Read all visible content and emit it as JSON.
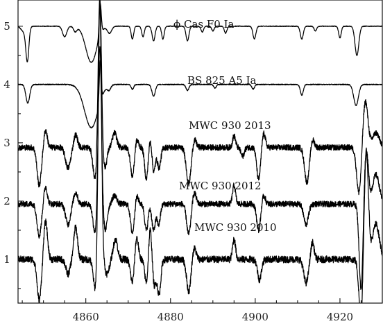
{
  "chart_data": {
    "type": "line",
    "title": "",
    "xlabel": "",
    "ylabel": "",
    "xlim": [
      4844,
      4930
    ],
    "ylim": [
      0.25,
      5.45
    ],
    "x_ticks": [
      4860,
      4880,
      4900,
      4920
    ],
    "y_ticks": [
      1,
      2,
      3,
      4,
      5
    ],
    "grid": false,
    "series": [
      {
        "name": "ϕ Cas F0 Ia",
        "continuum": 5.0,
        "noise": 0.006,
        "features": [
          [
            4845.5,
            -0.1,
            0.7
          ],
          [
            4846.2,
            -0.55,
            0.35
          ],
          [
            4855.0,
            -0.18,
            0.5
          ],
          [
            4857.5,
            -0.09,
            0.4
          ],
          [
            4861.3,
            -0.62,
            1.3
          ],
          [
            4863.4,
            0.55,
            0.25
          ],
          [
            4865.6,
            -0.12,
            0.5
          ],
          [
            4871.0,
            -0.22,
            0.3
          ],
          [
            4873.5,
            -0.18,
            0.3
          ],
          [
            4876.0,
            -0.25,
            0.35
          ],
          [
            4878.2,
            -0.22,
            0.3
          ],
          [
            4884.0,
            -0.25,
            0.35
          ],
          [
            4887.5,
            -0.1,
            0.3
          ],
          [
            4890.0,
            -0.08,
            0.3
          ],
          [
            4893.0,
            -0.12,
            0.3
          ],
          [
            4899.8,
            -0.22,
            0.35
          ],
          [
            4911.0,
            -0.22,
            0.35
          ],
          [
            4914.2,
            -0.08,
            0.3
          ],
          [
            4920.0,
            -0.2,
            0.3
          ],
          [
            4924.0,
            -0.5,
            0.45
          ]
        ]
      },
      {
        "name": "BS 825 A5 Ia",
        "continuum": 4.0,
        "noise": 0.008,
        "features": [
          [
            4846.3,
            -0.32,
            0.45
          ],
          [
            4861.3,
            -0.74,
            1.6
          ],
          [
            4863.4,
            0.72,
            0.22
          ],
          [
            4865.5,
            -0.08,
            0.4
          ],
          [
            4871.0,
            -0.08,
            0.3
          ],
          [
            4876.0,
            -0.2,
            0.4
          ],
          [
            4884.0,
            -0.1,
            0.35
          ],
          [
            4890.5,
            -0.06,
            0.3
          ],
          [
            4899.5,
            -0.08,
            0.3
          ],
          [
            4911.0,
            -0.18,
            0.35
          ],
          [
            4923.8,
            -0.36,
            0.55
          ]
        ]
      },
      {
        "name": "MWC 930 2013",
        "continuum": 2.92,
        "noise": 0.05,
        "features": [
          [
            4849.0,
            -0.65,
            0.5
          ],
          [
            4850.5,
            0.3,
            0.4
          ],
          [
            4855.8,
            -0.35,
            0.6
          ],
          [
            4857.6,
            0.22,
            0.45
          ],
          [
            4862.2,
            -0.55,
            0.5
          ],
          [
            4863.3,
            2.65,
            0.38
          ],
          [
            4864.5,
            -0.35,
            0.45
          ],
          [
            4866.8,
            0.25,
            0.5
          ],
          [
            4871.0,
            -0.5,
            0.45
          ],
          [
            4872.0,
            0.15,
            0.4
          ],
          [
            4874.3,
            -0.55,
            0.4
          ],
          [
            4875.3,
            0.2,
            0.4
          ],
          [
            4876.0,
            -0.45,
            0.4
          ],
          [
            4877.3,
            -0.35,
            0.4
          ],
          [
            4884.3,
            -0.62,
            0.55
          ],
          [
            4885.6,
            0.15,
            0.45
          ],
          [
            4895.0,
            0.2,
            0.35
          ],
          [
            4897.0,
            -0.15,
            0.4
          ],
          [
            4900.8,
            -0.55,
            0.45
          ],
          [
            4902.0,
            0.25,
            0.4
          ],
          [
            4912.2,
            -0.6,
            0.55
          ],
          [
            4913.5,
            0.15,
            0.45
          ],
          [
            4924.5,
            -0.8,
            0.55
          ],
          [
            4926.0,
            0.8,
            0.6
          ],
          [
            4928.5,
            0.25,
            0.8
          ]
        ]
      },
      {
        "name": "MWC 930 2012",
        "continuum": 1.95,
        "noise": 0.05,
        "features": [
          [
            4849.0,
            -0.55,
            0.5
          ],
          [
            4850.5,
            0.3,
            0.4
          ],
          [
            4855.8,
            -0.35,
            0.55
          ],
          [
            4857.6,
            0.2,
            0.45
          ],
          [
            4862.2,
            -0.5,
            0.5
          ],
          [
            4863.3,
            2.75,
            0.38
          ],
          [
            4864.6,
            -0.45,
            0.45
          ],
          [
            4866.8,
            0.15,
            0.5
          ],
          [
            4871.0,
            -0.5,
            0.45
          ],
          [
            4872.0,
            0.15,
            0.4
          ],
          [
            4874.3,
            -0.45,
            0.4
          ],
          [
            4876.0,
            -0.45,
            0.4
          ],
          [
            4877.2,
            -0.35,
            0.4
          ],
          [
            4884.3,
            -0.52,
            0.5
          ],
          [
            4885.6,
            0.2,
            0.45
          ],
          [
            4895.0,
            0.32,
            0.35
          ],
          [
            4900.8,
            -0.45,
            0.45
          ],
          [
            4902.0,
            0.15,
            0.4
          ],
          [
            4912.0,
            -0.35,
            0.55
          ],
          [
            4925.0,
            -1.5,
            0.45
          ],
          [
            4926.2,
            0.95,
            0.5
          ],
          [
            4928.5,
            0.5,
            0.8
          ]
        ]
      },
      {
        "name": "MWC 930 2010",
        "continuum": 1.0,
        "noise": 0.06,
        "features": [
          [
            4849.0,
            -0.7,
            0.5
          ],
          [
            4850.5,
            0.65,
            0.45
          ],
          [
            4855.8,
            -0.25,
            0.5
          ],
          [
            4857.6,
            0.55,
            0.45
          ],
          [
            4862.3,
            -0.55,
            0.5
          ],
          [
            4863.3,
            4.5,
            0.38
          ],
          [
            4865.0,
            -0.25,
            0.5
          ],
          [
            4867.0,
            0.35,
            0.5
          ],
          [
            4871.0,
            -0.4,
            0.45
          ],
          [
            4872.0,
            0.4,
            0.4
          ],
          [
            4874.3,
            -0.4,
            0.4
          ],
          [
            4875.2,
            0.55,
            0.35
          ],
          [
            4876.2,
            -0.45,
            0.4
          ],
          [
            4877.3,
            -0.6,
            0.4
          ],
          [
            4884.3,
            -0.55,
            0.5
          ],
          [
            4885.6,
            0.2,
            0.45
          ],
          [
            4895.0,
            0.35,
            0.35
          ],
          [
            4901.0,
            -0.35,
            0.45
          ],
          [
            4912.0,
            -0.4,
            0.55
          ],
          [
            4913.5,
            0.3,
            0.4
          ],
          [
            4925.0,
            -1.05,
            0.5
          ],
          [
            4926.2,
            1.9,
            0.5
          ],
          [
            4928.5,
            0.6,
            0.8
          ]
        ]
      }
    ]
  }
}
